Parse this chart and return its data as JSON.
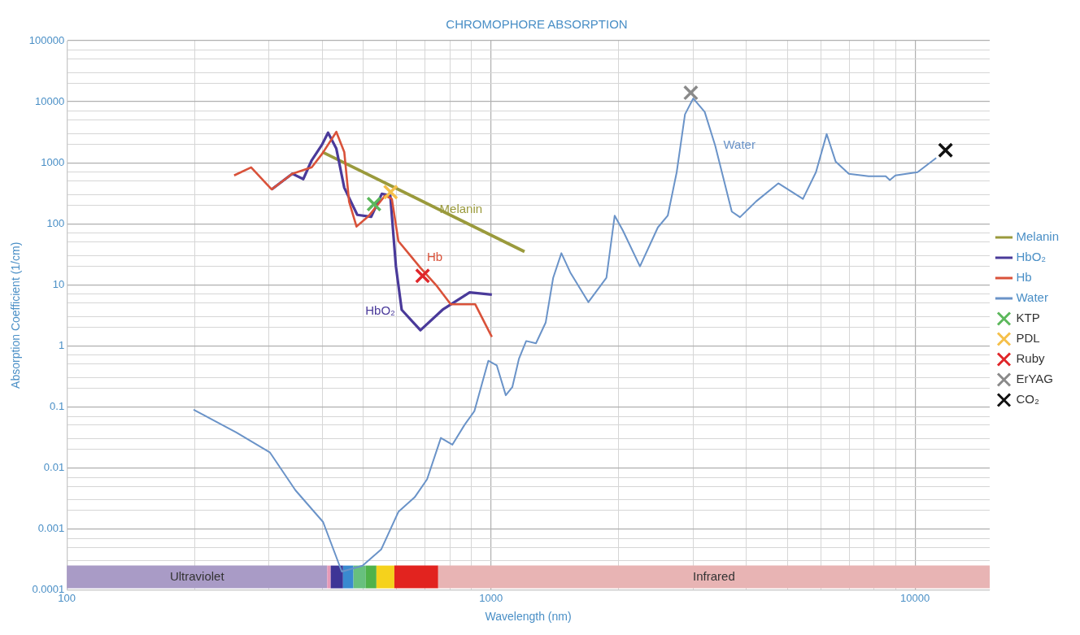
{
  "chart_data": {
    "type": "line",
    "title": "CHROMOPHORE ABSORPTION",
    "xlabel": "Wavelength (nm)",
    "ylabel": "Absorption Coefficient (1/cm)",
    "log": "xy",
    "grid": true,
    "legend": "right",
    "marker": "none",
    "line_style": "solid",
    "xlim": [
      100,
      15000
    ],
    "ylim": [
      0.0001,
      100000
    ],
    "xticks": [
      100,
      {
        "value": 200,
        "label": null
      },
      {
        "value": 300,
        "label": null
      },
      {
        "value": 400,
        "label": null
      },
      {
        "value": 500,
        "label": null
      },
      {
        "value": 600,
        "label": null
      },
      {
        "value": 700,
        "label": null
      },
      {
        "value": 800,
        "label": null
      },
      {
        "value": 900,
        "label": null
      },
      1000,
      {
        "value": 2000,
        "label": null
      },
      {
        "value": 3000,
        "label": null
      },
      {
        "value": 4000,
        "label": null
      },
      {
        "value": 5000,
        "label": null
      },
      {
        "value": 6000,
        "label": null
      },
      {
        "value": 7000,
        "label": null
      },
      {
        "value": 8000,
        "label": null
      },
      {
        "value": 9000,
        "label": null
      },
      10000
    ],
    "yticks": [
      0.0001,
      {
        "value": 0.0002,
        "label": null
      },
      {
        "value": 0.0003,
        "label": null
      },
      {
        "value": 0.0005,
        "label": null
      },
      {
        "value": 0.0007,
        "label": null
      },
      0.001,
      {
        "value": 0.002,
        "label": null
      },
      {
        "value": 0.003,
        "label": null
      },
      {
        "value": 0.005,
        "label": null
      },
      {
        "value": 0.007,
        "label": null
      },
      0.01,
      {
        "value": 0.02,
        "label": null
      },
      {
        "value": 0.03,
        "label": null
      },
      {
        "value": 0.05,
        "label": null
      },
      {
        "value": 0.07,
        "label": null
      },
      0.1,
      {
        "value": 0.2,
        "label": null
      },
      {
        "value": 0.3,
        "label": null
      },
      {
        "value": 0.5,
        "label": null
      },
      {
        "value": 0.7,
        "label": null
      },
      1,
      {
        "value": 2,
        "label": null
      },
      {
        "value": 3,
        "label": null
      },
      {
        "value": 5,
        "label": null
      },
      {
        "value": 7,
        "label": null
      },
      10,
      {
        "value": 20,
        "label": null
      },
      {
        "value": 30,
        "label": null
      },
      {
        "value": 50,
        "label": null
      },
      {
        "value": 70,
        "label": null
      },
      100,
      {
        "value": 200,
        "label": null
      },
      {
        "value": 300,
        "label": null
      },
      {
        "value": 500,
        "label": null
      },
      {
        "value": 700,
        "label": null
      },
      1000,
      {
        "value": 2000,
        "label": null
      },
      {
        "value": 3000,
        "label": null
      },
      {
        "value": 5000,
        "label": null
      },
      {
        "value": 7000,
        "label": null
      },
      10000,
      {
        "value": 20000,
        "label": null
      },
      {
        "value": 30000,
        "label": null
      },
      {
        "value": 50000,
        "label": null
      },
      {
        "value": 70000,
        "label": null
      },
      100000
    ],
    "series": [
      {
        "name": "Melanin",
        "type": "line",
        "color": "#9a9a3c",
        "x": [
          400,
          1200
        ],
        "values": [
          1500,
          35
        ]
      },
      {
        "name": "HbO₂",
        "type": "line",
        "color": "#4a3a9a",
        "x": [
          304,
          340,
          361,
          378,
          400,
          413,
          432,
          451,
          484,
          522,
          553,
          579,
          597,
          616,
          682,
          769,
          891,
          1005
        ],
        "values": [
          365,
          660,
          540,
          1100,
          2000,
          3100,
          1700,
          390,
          140,
          130,
          310,
          290,
          20,
          3.9,
          1.8,
          3.9,
          7.5,
          6.9
        ]
      },
      {
        "name": "Hb",
        "type": "line",
        "color": "#d9523a",
        "x": [
          248,
          272,
          304,
          340,
          378,
          400,
          432,
          451,
          463,
          482,
          516,
          563,
          584,
          605,
          682,
          746,
          804,
          918,
          1005
        ],
        "values": [
          620,
          840,
          365,
          660,
          840,
          1400,
          3200,
          1500,
          230,
          90,
          136,
          290,
          255,
          52,
          19,
          9.5,
          4.8,
          4.8,
          1.4
        ]
      },
      {
        "name": "Water",
        "type": "line",
        "color": "#6a93c8",
        "x": [
          199,
          251,
          301,
          346,
          402,
          445,
          498,
          551,
          605,
          661,
          707,
          762,
          811,
          867,
          914,
          986,
          1032,
          1084,
          1123,
          1164,
          1211,
          1277,
          1346,
          1402,
          1466,
          1538,
          1697,
          1872,
          1958,
          2048,
          2246,
          2475,
          2612,
          2742,
          2868,
          3000,
          3192,
          3380,
          3698,
          3866,
          4221,
          4760,
          5441,
          5840,
          6190,
          6500,
          6980,
          7770,
          8530,
          8720,
          8990,
          10140,
          11220
        ],
        "values": [
          0.09,
          0.038,
          0.018,
          0.0043,
          0.0013,
          0.0002,
          0.00025,
          0.00046,
          0.0019,
          0.0033,
          0.0065,
          0.031,
          0.024,
          0.051,
          0.085,
          0.57,
          0.48,
          0.155,
          0.21,
          0.61,
          1.2,
          1.1,
          2.4,
          13,
          33,
          16,
          5.2,
          13,
          136,
          77,
          20,
          87,
          136,
          700,
          6200,
          11300,
          6800,
          1900,
          158,
          128,
          233,
          460,
          255,
          700,
          2950,
          1040,
          660,
          600,
          600,
          520,
          620,
          700,
          1200
        ]
      },
      {
        "name": "KTP",
        "type": "scatter",
        "marker": "cross",
        "color": "#5cb85c",
        "x": [
          530
        ],
        "values": [
          210
        ]
      },
      {
        "name": "PDL",
        "type": "scatter",
        "marker": "cross",
        "color": "#f5c04a",
        "x": [
          580
        ],
        "values": [
          330
        ]
      },
      {
        "name": "Ruby",
        "type": "scatter",
        "marker": "cross",
        "color": "#e0262a",
        "x": [
          690
        ],
        "values": [
          14
        ]
      },
      {
        "name": "ErYAG",
        "type": "scatter",
        "marker": "cross",
        "color": "#8a8a8a",
        "x": [
          2960
        ],
        "values": [
          14000
        ]
      },
      {
        "name": "CO₂",
        "type": "scatter",
        "marker": "cross",
        "color": "#111111",
        "x": [
          11800
        ],
        "values": [
          1600
        ]
      }
    ],
    "annotations": [
      {
        "text": "Melanin",
        "x": 850,
        "y": 114
      },
      {
        "text": "HbO₂",
        "x": 616,
        "y": 3.9
      },
      {
        "text": "Hb",
        "x": 682,
        "y": 19
      },
      {
        "text": "Water",
        "x": 3380,
        "y": 1900
      }
    ],
    "bands": [
      {
        "axis": "x",
        "from": 100,
        "to": 411,
        "label": "Ultraviolet",
        "color": "#a99bc6"
      },
      {
        "axis": "x",
        "from": 411,
        "to": 419,
        "color": "#e79ab8"
      },
      {
        "axis": "x",
        "from": 419,
        "to": 448,
        "color": "#3d3596"
      },
      {
        "axis": "x",
        "from": 448,
        "to": 474,
        "color": "#3a8ad0"
      },
      {
        "axis": "x",
        "from": 474,
        "to": 507,
        "color": "#67c07e"
      },
      {
        "axis": "x",
        "from": 507,
        "to": 537,
        "color": "#4fb24a"
      },
      {
        "axis": "x",
        "from": 537,
        "to": 592,
        "color": "#f5d21c"
      },
      {
        "axis": "x",
        "from": 592,
        "to": 751,
        "color": "#e2231f"
      },
      {
        "axis": "x",
        "from": 751,
        "to": 15000,
        "label": "Infrared",
        "color": "#e8b4b4"
      }
    ]
  }
}
